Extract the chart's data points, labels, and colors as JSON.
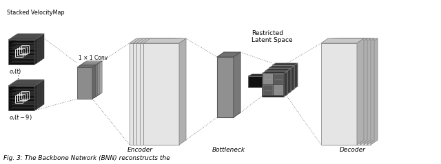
{
  "bg_color": "#ffffff",
  "label_stacked": "Stacked VelocityMap",
  "label_conv": "1 × 1 Conv",
  "label_encoder": "Encoder",
  "label_bottleneck": "Bottleneck",
  "label_decoder": "Decoder",
  "label_restricted": "Restricted\nLatent Space",
  "label_oi_t": "$o_i(t)$",
  "label_oi_t9": "$o_i(t-9)$",
  "label_vdots": "⋮",
  "fig_caption": "Fig. 3: The Backbone Network (BNN) reconstructs the"
}
